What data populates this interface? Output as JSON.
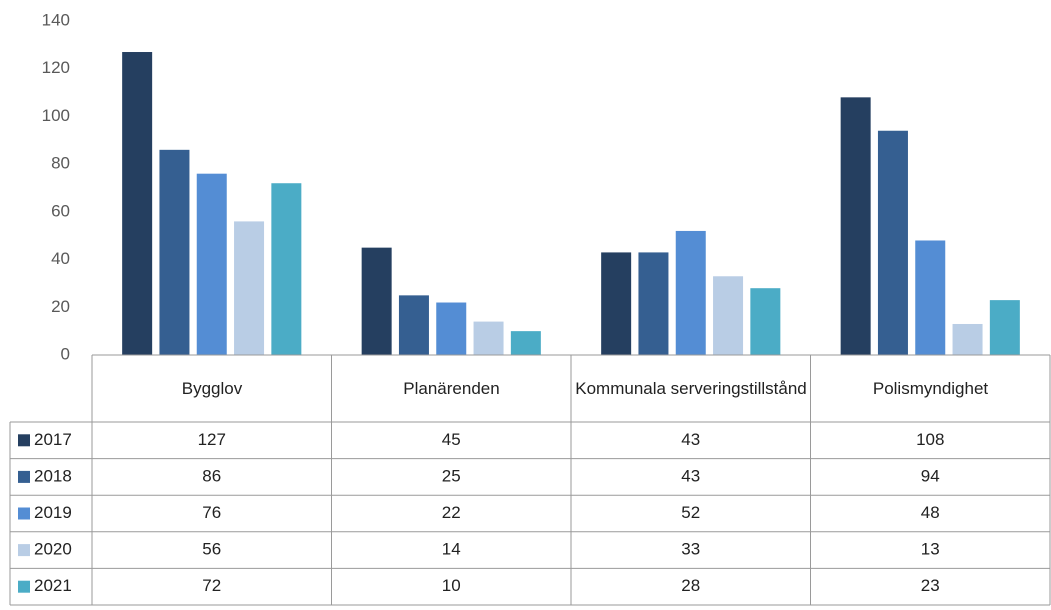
{
  "chart_data": {
    "type": "bar",
    "categories": [
      "Bygglov",
      "Planärenden",
      "Kommunala serveringstillstånd",
      "Polismyndighet"
    ],
    "series": [
      {
        "name": "2017",
        "color": "#253f60",
        "values": [
          127,
          45,
          43,
          108
        ]
      },
      {
        "name": "2018",
        "color": "#355f91",
        "values": [
          86,
          25,
          43,
          94
        ]
      },
      {
        "name": "2019",
        "color": "#548dd4",
        "values": [
          76,
          22,
          52,
          48
        ]
      },
      {
        "name": "2020",
        "color": "#b9cde5",
        "values": [
          56,
          14,
          33,
          13
        ]
      },
      {
        "name": "2021",
        "color": "#4bacc6",
        "values": [
          72,
          10,
          28,
          23
        ]
      }
    ],
    "ylim": [
      0,
      140
    ],
    "yticks": [
      0,
      20,
      40,
      60,
      80,
      100,
      120,
      140
    ],
    "grid": false,
    "data_table": true
  }
}
